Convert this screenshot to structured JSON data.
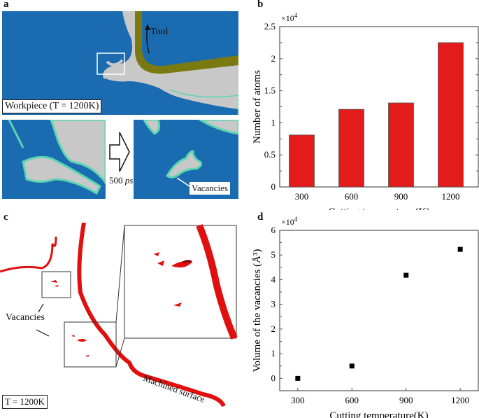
{
  "panels": {
    "a": {
      "label": "a",
      "workpiece_label": "Workpiece (T = 1200K)",
      "tool_label": "Tool",
      "time_label_num": "500",
      "time_label_unit": "ps",
      "vacancies_label": "Vacancies",
      "colors": {
        "crystal": "#1a6bb0",
        "disordered": "#c8c8c8",
        "surface": "#5ad6b0",
        "tool": "#7a7a10"
      }
    },
    "b": {
      "label": "b"
    },
    "c": {
      "label": "c",
      "vacancies_label": "Vacancies",
      "surface_label": "Machined surface",
      "temp_label": "T = 1200K",
      "colors": {
        "surface": "#e01010"
      }
    },
    "d": {
      "label": "d"
    }
  },
  "chart_data": [
    {
      "type": "bar",
      "panel": "b",
      "categories": [
        "300",
        "600",
        "900",
        "1200"
      ],
      "values": [
        0.81,
        1.21,
        1.31,
        2.25
      ],
      "multiplier": "×10",
      "multiplier_exp": "4",
      "xlabel": "Cutting temperature (K)",
      "ylabel": "Number of atoms",
      "ylim": [
        0,
        2.5
      ],
      "yticks": [
        "0",
        "0.5",
        "1",
        "1.5",
        "2",
        "2.5"
      ],
      "bar_color": "#e31b1b",
      "grid": false
    },
    {
      "type": "scatter",
      "panel": "d",
      "x": [
        300,
        600,
        900,
        1200
      ],
      "y": [
        0,
        0.5,
        4.18,
        5.23
      ],
      "multiplier": "×10",
      "multiplier_exp": "4",
      "xlabel": "Cutting temperature(K)",
      "ylabel": "Volume of the vacancies (Å³)",
      "xlim": [
        200,
        1300
      ],
      "ylim": [
        -0.5,
        6
      ],
      "xticks": [
        "300",
        "600",
        "900",
        "1200"
      ],
      "yticks": [
        "0",
        "1",
        "2",
        "3",
        "4",
        "5",
        "6"
      ],
      "marker_color": "#000000",
      "grid": false
    }
  ]
}
